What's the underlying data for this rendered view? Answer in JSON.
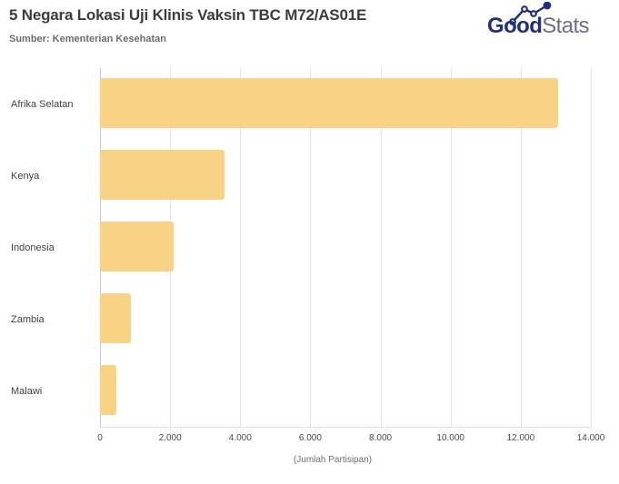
{
  "header": {
    "title": "5 Negara Lokasi Uji Klinis Vaksin TBC M72/AS01E",
    "source": "Sumber: Kementerian Kesehatan"
  },
  "logo": {
    "good": "Good",
    "stats": "Stats"
  },
  "colors": {
    "bar": "#f8d385",
    "title_text": "#3c3c3c",
    "source_text": "#6d6d6d",
    "logo_navy": "#232e7d",
    "logo_gray": "#716c87",
    "gridline": "#e4e4e4",
    "axis_line": "#c7c7c7"
  },
  "chart_data": {
    "type": "bar",
    "orientation": "horizontal",
    "title": "5 Negara Lokasi Uji Klinis Vaksin TBC M72/AS01E",
    "subtitle": "Sumber: Kementerian Kesehatan",
    "categories": [
      "Afrika Selatan",
      "Kenya",
      "Indonesia",
      "Zambia",
      "Malawi"
    ],
    "values": [
      13071,
      3556,
      2095,
      885,
      474
    ],
    "xlabel": "(Jumlah Partisipan)",
    "ylabel": "",
    "xlim": [
      0,
      14000
    ],
    "xticks": [
      0,
      2000,
      4000,
      6000,
      8000,
      10000,
      12000,
      14000
    ],
    "xtick_labels": [
      "0",
      "2.000",
      "4.000",
      "6.000",
      "8.000",
      "10.000",
      "12.000",
      "14.000"
    ],
    "grid": true,
    "legend": false,
    "bar_color": "#f8d385"
  }
}
